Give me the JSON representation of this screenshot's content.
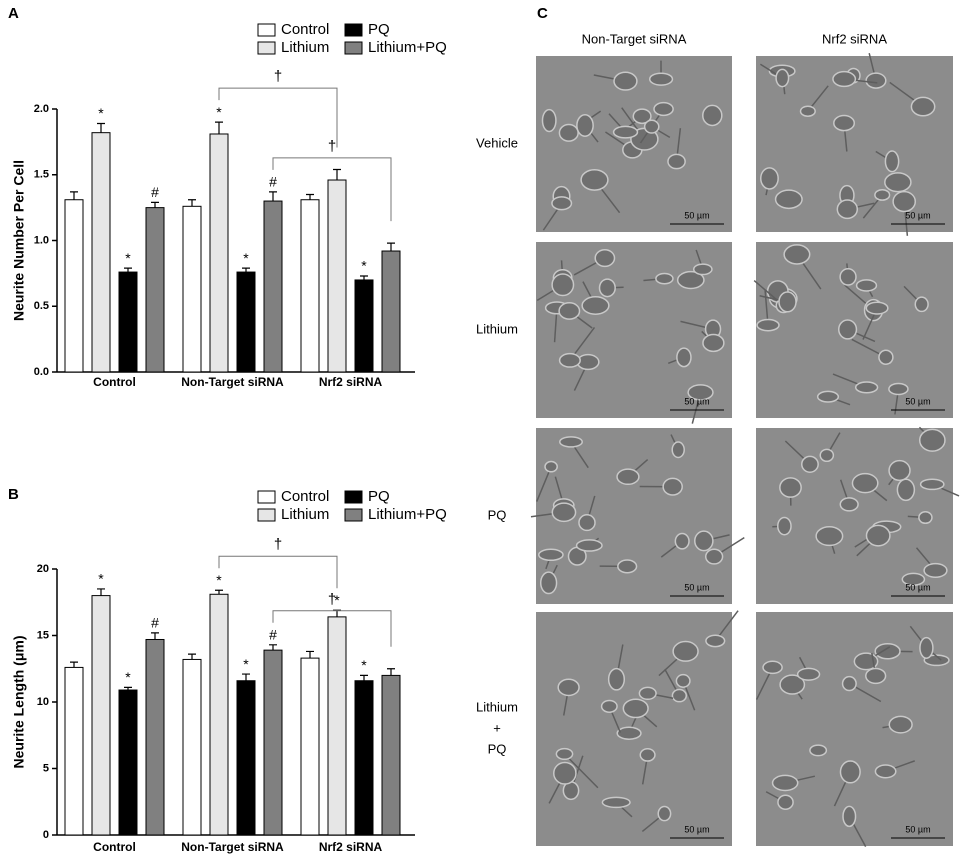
{
  "chart_data": [
    {
      "type": "bar",
      "panel_label": "A",
      "ylabel": "Neurite Number Per Cell",
      "categories": [
        "Control",
        "Non-Target siRNA",
        "Nrf2 siRNA"
      ],
      "series": [
        {
          "name": "Control",
          "color": "#ffffff",
          "values": [
            1.31,
            1.26,
            1.31
          ],
          "errors": [
            0.06,
            0.05,
            0.04
          ],
          "markers": [
            null,
            null,
            null
          ]
        },
        {
          "name": "Lithium",
          "color": "#e6e6e6",
          "values": [
            1.82,
            1.81,
            1.46
          ],
          "errors": [
            0.07,
            0.09,
            0.08
          ],
          "markers": [
            "*",
            "*",
            null
          ]
        },
        {
          "name": "PQ",
          "color": "#000000",
          "values": [
            0.76,
            0.76,
            0.7
          ],
          "errors": [
            0.03,
            0.03,
            0.03
          ],
          "markers": [
            "*",
            "*",
            "*"
          ]
        },
        {
          "name": "Lithium+PQ",
          "color": "#808080",
          "values": [
            1.25,
            1.3,
            0.92
          ],
          "errors": [
            0.04,
            0.07,
            0.06
          ],
          "markers": [
            "#",
            "#",
            null
          ]
        }
      ],
      "brackets": [
        "†",
        "†"
      ],
      "ylim": [
        0,
        2.0
      ],
      "yticks": [
        {
          "value": 0,
          "label": "0.0"
        },
        0.5,
        {
          "value": 1,
          "label": "1.0"
        },
        1.5,
        {
          "value": 2,
          "label": "2.0"
        }
      ]
    },
    {
      "type": "bar",
      "panel_label": "B",
      "ylabel": "Neurite Length (μm)",
      "categories": [
        "Control",
        "Non-Target siRNA",
        "Nrf2 siRNA"
      ],
      "series": [
        {
          "name": "Control",
          "color": "#ffffff",
          "values": [
            12.6,
            13.2,
            13.3
          ],
          "errors": [
            0.4,
            0.4,
            0.5
          ],
          "markers": [
            null,
            null,
            null
          ]
        },
        {
          "name": "Lithium",
          "color": "#e6e6e6",
          "values": [
            18.0,
            18.1,
            16.4
          ],
          "errors": [
            0.5,
            0.3,
            0.5
          ],
          "markers": [
            "*",
            "*",
            "*"
          ]
        },
        {
          "name": "PQ",
          "color": "#000000",
          "values": [
            10.9,
            11.6,
            11.6
          ],
          "errors": [
            0.2,
            0.5,
            0.4
          ],
          "markers": [
            "*",
            "*",
            "*"
          ]
        },
        {
          "name": "Lithium+PQ",
          "color": "#808080",
          "values": [
            14.7,
            13.9,
            12.0
          ],
          "errors": [
            0.5,
            0.4,
            0.5
          ],
          "markers": [
            "#",
            "#",
            null
          ]
        }
      ],
      "brackets": [
        "†",
        "†"
      ],
      "ylim": [
        0,
        20
      ],
      "yticks": [
        0,
        5,
        10,
        15,
        20
      ]
    }
  ],
  "panel_c": {
    "label": "C",
    "columns": [
      "Non-Target siRNA",
      "Nrf2 siRNA"
    ],
    "rows": [
      [
        "Vehicle"
      ],
      [
        "Lithium"
      ],
      [
        "PQ"
      ],
      [
        "Lithium",
        "+",
        "PQ"
      ]
    ],
    "scale_bar": "50 µm"
  }
}
